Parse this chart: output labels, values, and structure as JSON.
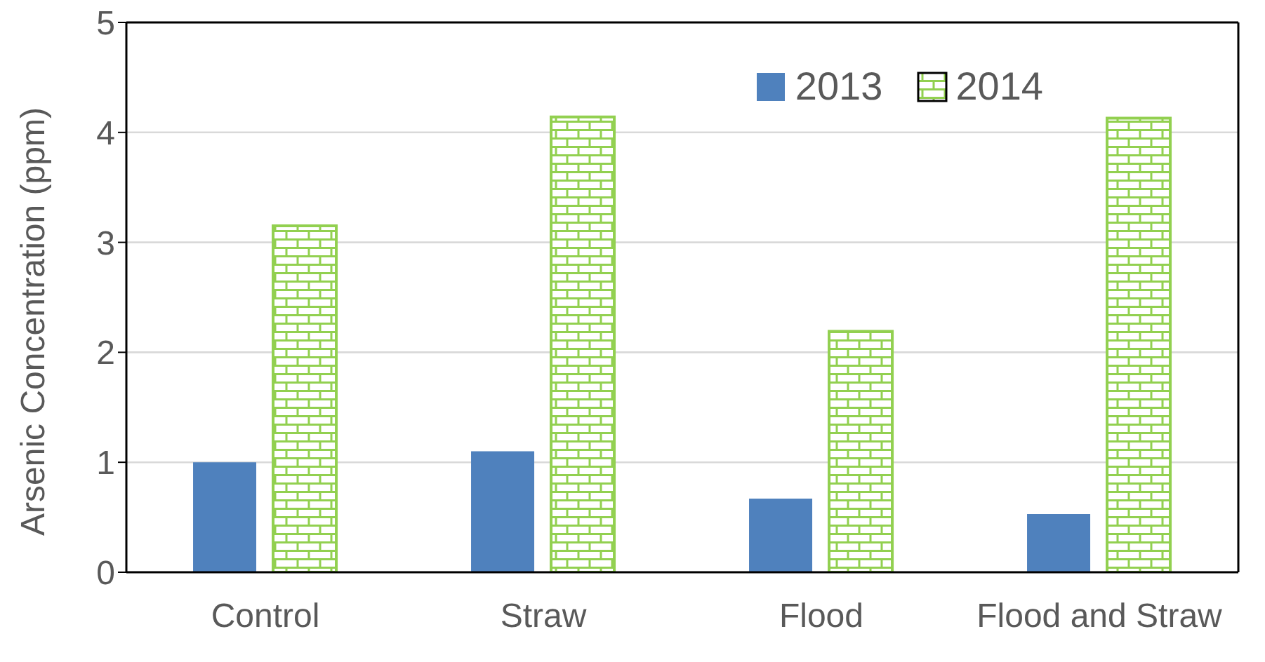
{
  "chart_data": {
    "type": "bar",
    "ylabel": "Arsenic Concentration (ppm)",
    "categories": [
      "Control",
      "Straw",
      "Flood",
      "Flood and Straw"
    ],
    "series": [
      {
        "name": "2013",
        "color": "#4f81bd",
        "values": [
          1.0,
          1.1,
          0.67,
          0.53
        ]
      },
      {
        "name": "2014",
        "color": "#92d050",
        "values": [
          3.15,
          4.14,
          2.19,
          4.13
        ]
      }
    ],
    "ylim": [
      0,
      5
    ],
    "yticks": [
      0,
      1,
      2,
      3,
      4,
      5
    ],
    "grid": "y",
    "legend": "top right"
  }
}
